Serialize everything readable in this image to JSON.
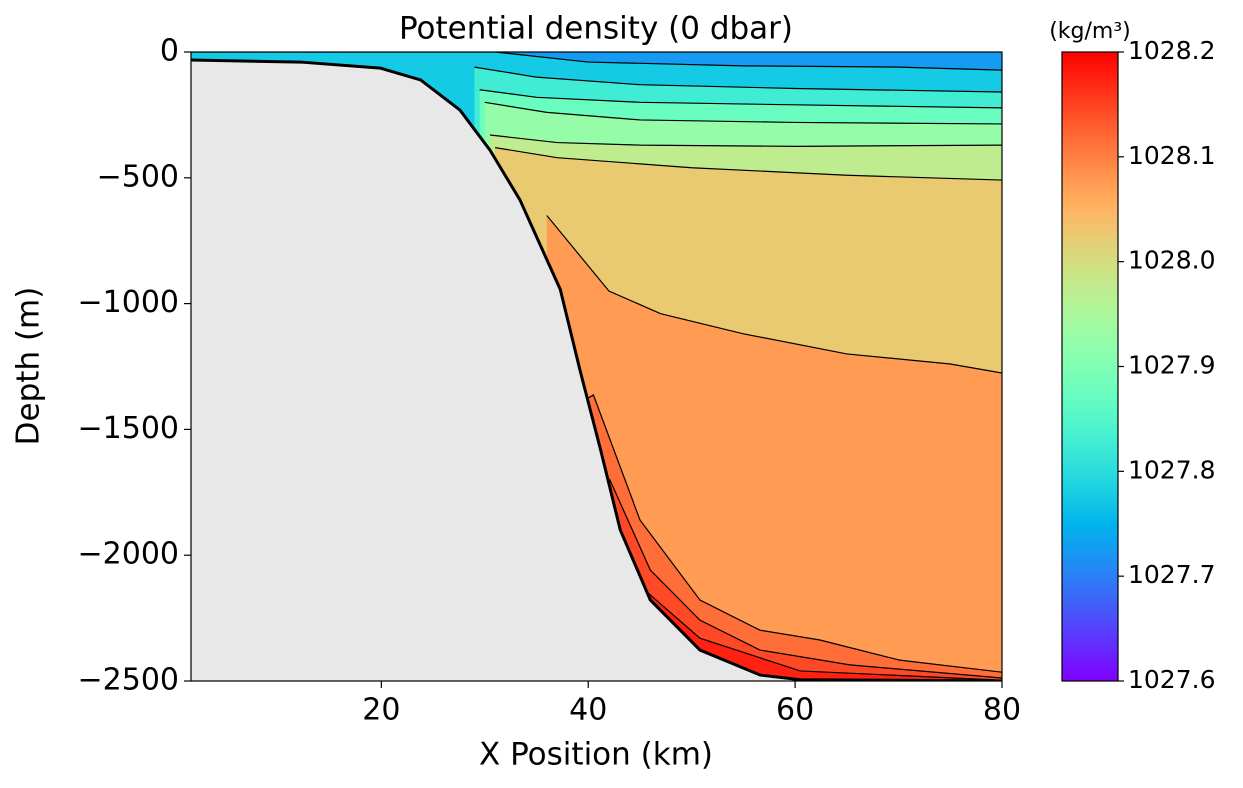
{
  "chart_data": {
    "type": "contourf",
    "title": "Potential density (0 dbar)",
    "x_label": "X Position (km)",
    "y_label": "Depth (m)",
    "colorbar_label": "(kg/m³)",
    "colormap": "rainbow",
    "clim": [
      1027.6,
      1028.2
    ],
    "cticks": [
      1027.6,
      1027.7,
      1027.8,
      1027.9,
      {
        "value": 1028.0,
        "label": "1028.0"
      },
      1028.1,
      1028.2
    ],
    "xlim": [
      1.6,
      80
    ],
    "ylim": [
      -2500,
      0
    ],
    "xticks": [
      20,
      40,
      60,
      80
    ],
    "yticks": [
      0,
      {
        "value": -500,
        "label": "−500"
      },
      {
        "value": -1000,
        "label": "−1000"
      },
      {
        "value": -1500,
        "label": "−1500"
      },
      {
        "value": -2000,
        "label": "−2000"
      },
      {
        "value": -2500,
        "label": "−2500"
      }
    ],
    "bathymetry": {
      "color": "#e8e8e8",
      "x": [
        1.6,
        12.2,
        19.9,
        23.8,
        27.6,
        30.5,
        33.4,
        37.3,
        39.2,
        41.2,
        43.1,
        46,
        50.8,
        56.6,
        60.5,
        80
      ],
      "y": [
        -32,
        -40,
        -64,
        -111,
        -231,
        -390,
        -588,
        -944,
        -1264,
        -1582,
        -1900,
        -2178,
        -2377,
        -2476,
        -2495,
        -2500
      ]
    },
    "contours": [
      {
        "level": 1027.75,
        "x": [
          1.6,
          31,
          40,
          55,
          70,
          80
        ],
        "y": [
          0,
          0,
          -40,
          -55,
          -60,
          -72
        ]
      },
      {
        "level": 1027.8,
        "x": [
          29,
          35,
          45,
          60,
          80
        ],
        "y": [
          -60,
          -100,
          -130,
          -145,
          -159
        ]
      },
      {
        "level": 1027.85,
        "x": [
          29.5,
          35,
          45,
          60,
          80
        ],
        "y": [
          -150,
          -180,
          -200,
          -210,
          -222
        ]
      },
      {
        "level": 1027.9,
        "x": [
          30,
          36,
          45,
          60,
          80
        ],
        "y": [
          -200,
          -240,
          -270,
          -280,
          -286
        ]
      },
      {
        "level": 1027.95,
        "x": [
          30.5,
          37,
          45,
          60,
          80
        ],
        "y": [
          -330,
          -360,
          -370,
          -375,
          -370
        ]
      },
      {
        "level": 1028.0,
        "x": [
          31,
          37,
          50,
          65,
          80
        ],
        "y": [
          -380,
          -420,
          -460,
          -490,
          -509
        ]
      },
      {
        "level": 1028.05,
        "x": [
          36,
          42,
          47,
          55,
          65,
          75,
          80
        ],
        "y": [
          -650,
          -950,
          -1040,
          -1120,
          -1200,
          -1240,
          -1276
        ]
      },
      {
        "level": 1028.1,
        "x": [
          39.8,
          40.5,
          45,
          50.8,
          56.6,
          62.4,
          70.1,
          80
        ],
        "y": [
          -1380,
          -1363,
          -1860,
          -2178,
          -2298,
          -2337,
          -2417,
          -2465
        ]
      },
      {
        "level": 1028.13,
        "x": [
          41.5,
          42.1,
          46,
          50.8,
          56.6,
          65.3,
          80
        ],
        "y": [
          -1750,
          -1701,
          -2059,
          -2258,
          -2377,
          -2436,
          -2488
        ]
      },
      {
        "level": 1028.16,
        "x": [
          45.5,
          50.8,
          60.5,
          80
        ],
        "y": [
          -2140,
          -2330,
          -2460,
          -2497
        ]
      }
    ]
  }
}
